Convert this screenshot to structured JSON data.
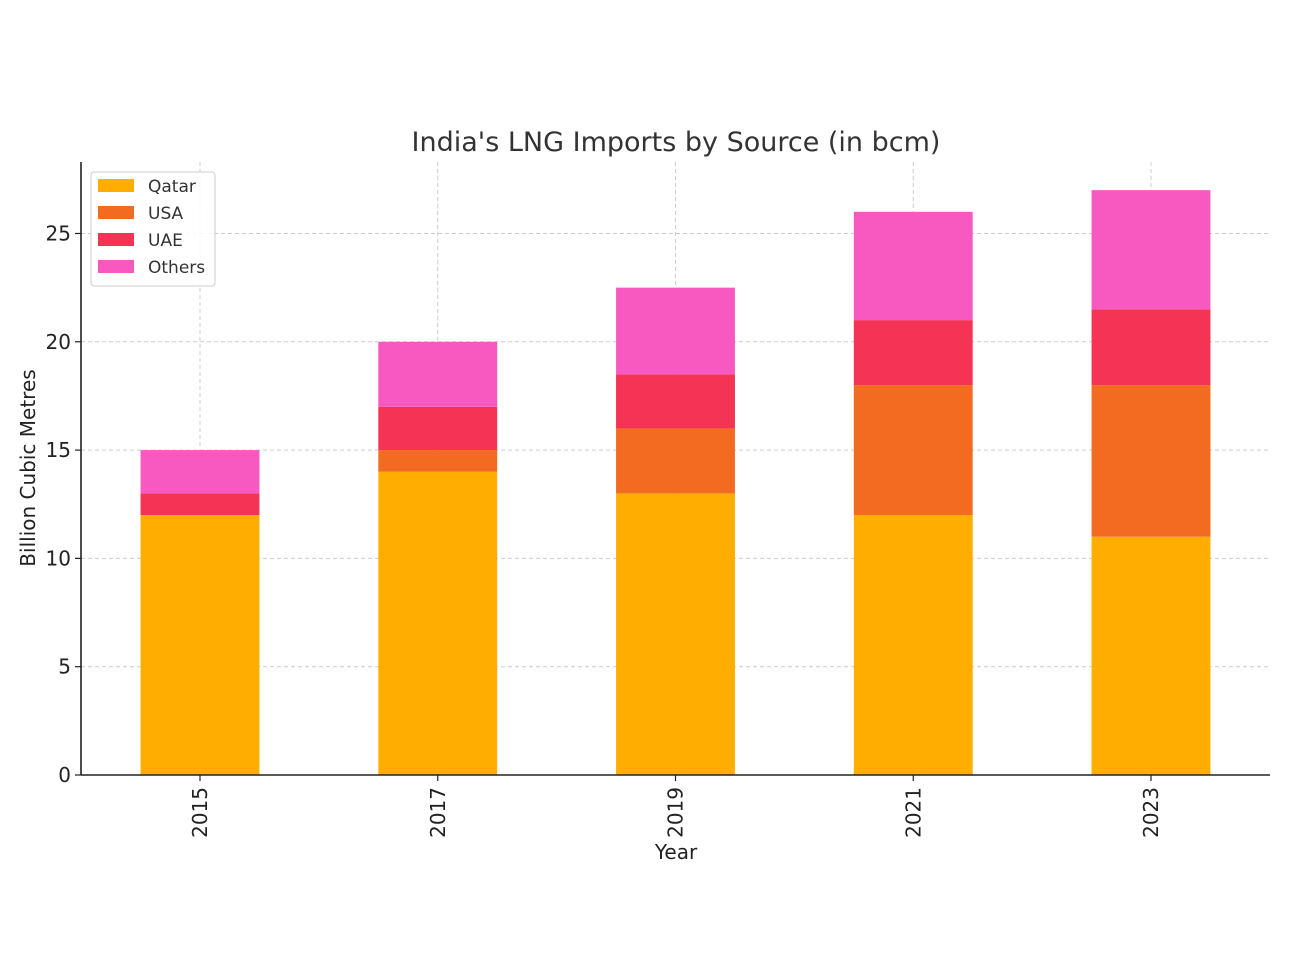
{
  "chart_data": {
    "type": "bar",
    "stacked": true,
    "title": "India's LNG Imports by Source (in bcm)",
    "xlabel": "Year",
    "ylabel": "Billion Cubic Metres",
    "categories": [
      "2015",
      "2017",
      "2019",
      "2021",
      "2023"
    ],
    "series": [
      {
        "name": "Qatar",
        "color": "#FFAE00",
        "values": [
          12,
          14,
          13,
          12,
          11
        ]
      },
      {
        "name": "USA",
        "color": "#F26B21",
        "values": [
          0,
          1,
          3,
          6,
          7
        ]
      },
      {
        "name": "UAE",
        "color": "#F43355",
        "values": [
          1,
          2,
          2.5,
          3,
          3.5
        ]
      },
      {
        "name": "Others",
        "color": "#F859C1",
        "values": [
          2,
          3,
          4,
          5,
          5.5
        ]
      }
    ],
    "ylim": [
      0,
      28.3
    ],
    "yticks": [
      0,
      5,
      10,
      15,
      20,
      25
    ],
    "grid": true,
    "legend_position": "top-left"
  }
}
